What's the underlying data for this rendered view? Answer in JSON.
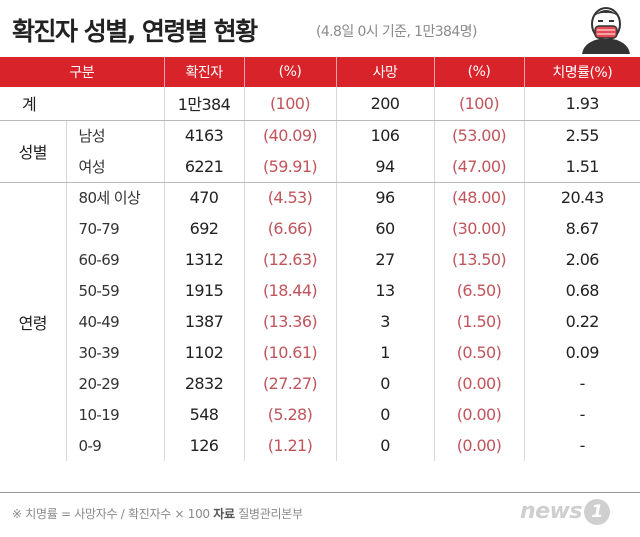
{
  "header": {
    "title": "확진자 성별, 연령별 현황",
    "subtitle": "(4.8일 0시 기준, 1만384명)"
  },
  "table": {
    "columns": [
      "구분",
      "확진자",
      "(%)",
      "사망",
      "(%)",
      "치명률(%)"
    ],
    "total": {
      "label": "계",
      "cases": "1만384",
      "cases_pct": "(100)",
      "deaths": "200",
      "deaths_pct": "(100)",
      "fatality": "1.93"
    },
    "gender_group": "성별",
    "gender": [
      {
        "label": "남성",
        "cases": "4163",
        "cases_pct": "(40.09)",
        "deaths": "106",
        "deaths_pct": "(53.00)",
        "fatality": "2.55"
      },
      {
        "label": "여성",
        "cases": "6221",
        "cases_pct": "(59.91)",
        "deaths": "94",
        "deaths_pct": "(47.00)",
        "fatality": "1.51"
      }
    ],
    "age_group": "연령",
    "age": [
      {
        "label": "80세 이상",
        "cases": "470",
        "cases_pct": "(4.53)",
        "deaths": "96",
        "deaths_pct": "(48.00)",
        "fatality": "20.43"
      },
      {
        "label": "70-79",
        "cases": "692",
        "cases_pct": "(6.66)",
        "deaths": "60",
        "deaths_pct": "(30.00)",
        "fatality": "8.67"
      },
      {
        "label": "60-69",
        "cases": "1312",
        "cases_pct": "(12.63)",
        "deaths": "27",
        "deaths_pct": "(13.50)",
        "fatality": "2.06"
      },
      {
        "label": "50-59",
        "cases": "1915",
        "cases_pct": "(18.44)",
        "deaths": "13",
        "deaths_pct": "(6.50)",
        "fatality": "0.68"
      },
      {
        "label": "40-49",
        "cases": "1387",
        "cases_pct": "(13.36)",
        "deaths": "3",
        "deaths_pct": "(1.50)",
        "fatality": "0.22"
      },
      {
        "label": "30-39",
        "cases": "1102",
        "cases_pct": "(10.61)",
        "deaths": "1",
        "deaths_pct": "(0.50)",
        "fatality": "0.09"
      },
      {
        "label": "20-29",
        "cases": "2832",
        "cases_pct": "(27.27)",
        "deaths": "0",
        "deaths_pct": "(0.00)",
        "fatality": "-"
      },
      {
        "label": "10-19",
        "cases": "548",
        "cases_pct": "(5.28)",
        "deaths": "0",
        "deaths_pct": "(0.00)",
        "fatality": "-"
      },
      {
        "label": "0-9",
        "cases": "126",
        "cases_pct": "(1.21)",
        "deaths": "0",
        "deaths_pct": "(0.00)",
        "fatality": "-"
      }
    ]
  },
  "footer": {
    "note": "※ 치명률 = 사망자수 / 확진자수 × 100",
    "source_label": "자료",
    "source": "질병관리본부",
    "logo_text": "news",
    "logo_num": "1"
  },
  "colors": {
    "header_red": "#d9232a",
    "pct_text": "#c0555c"
  },
  "icons": {
    "mascot": "masked-person-icon"
  }
}
